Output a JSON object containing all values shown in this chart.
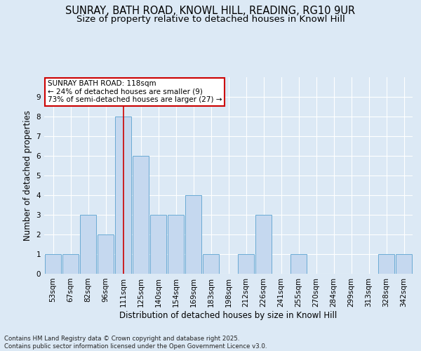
{
  "title_line1": "SUNRAY, BATH ROAD, KNOWL HILL, READING, RG10 9UR",
  "title_line2": "Size of property relative to detached houses in Knowl Hill",
  "xlabel": "Distribution of detached houses by size in Knowl Hill",
  "ylabel": "Number of detached properties",
  "categories": [
    "53sqm",
    "67sqm",
    "82sqm",
    "96sqm",
    "111sqm",
    "125sqm",
    "140sqm",
    "154sqm",
    "169sqm",
    "183sqm",
    "198sqm",
    "212sqm",
    "226sqm",
    "241sqm",
    "255sqm",
    "270sqm",
    "284sqm",
    "299sqm",
    "313sqm",
    "328sqm",
    "342sqm"
  ],
  "values": [
    1,
    1,
    3,
    2,
    8,
    6,
    3,
    3,
    4,
    1,
    0,
    1,
    3,
    0,
    1,
    0,
    0,
    0,
    0,
    1,
    1
  ],
  "bar_color": "#c5d8ef",
  "bar_edge_color": "#6aaad4",
  "highlight_index": 4,
  "highlight_color": "#cc0000",
  "annotation_text": "SUNRAY BATH ROAD: 118sqm\n← 24% of detached houses are smaller (9)\n73% of semi-detached houses are larger (27) →",
  "annotation_box_facecolor": "#ffffff",
  "annotation_box_edgecolor": "#cc0000",
  "ylim": [
    0,
    10
  ],
  "yticks": [
    0,
    1,
    2,
    3,
    4,
    5,
    6,
    7,
    8,
    9,
    10
  ],
  "footer_text": "Contains HM Land Registry data © Crown copyright and database right 2025.\nContains public sector information licensed under the Open Government Licence v3.0.",
  "background_color": "#dce9f5",
  "plot_bg_color": "#dce9f5",
  "grid_color": "#ffffff",
  "title_fontsize": 10.5,
  "subtitle_fontsize": 9.5,
  "axis_label_fontsize": 8.5,
  "tick_fontsize": 7.5,
  "annotation_fontsize": 7.5,
  "footer_fontsize": 6.2
}
